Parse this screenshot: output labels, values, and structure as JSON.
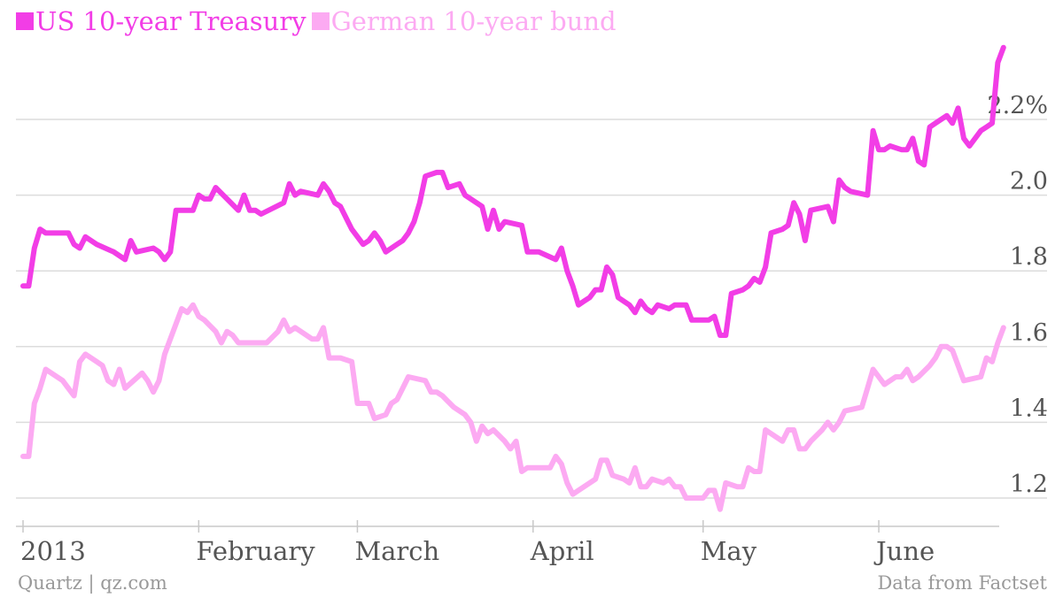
{
  "footer": {
    "credit": "Quartz | qz.com",
    "source": "Data from Factset"
  },
  "chart_data": {
    "type": "line",
    "title": "",
    "xlabel": "",
    "ylabel": "",
    "ylim": [
      1.15,
      2.4
    ],
    "y_ticks": [
      {
        "value": 1.2,
        "label": "1.2"
      },
      {
        "value": 1.4,
        "label": "1.4"
      },
      {
        "value": 1.6,
        "label": "1.6"
      },
      {
        "value": 1.8,
        "label": "1.8"
      },
      {
        "value": 2.0,
        "label": "2.0"
      },
      {
        "value": 2.2,
        "label": "2.2%"
      }
    ],
    "x_range": [
      "2013-01-01",
      "2013-06-21"
    ],
    "x_ticks": [
      {
        "date": "2013-01-01",
        "label": "2013"
      },
      {
        "date": "2013-02-01",
        "label": "February"
      },
      {
        "date": "2013-03-01",
        "label": "March"
      },
      {
        "date": "2013-04-01",
        "label": "April"
      },
      {
        "date": "2013-05-01",
        "label": "May"
      },
      {
        "date": "2013-06-01",
        "label": "June"
      }
    ],
    "grid": true,
    "legend_position": "top-left",
    "series": [
      {
        "name": "US 10-year Treasury",
        "color": "#f23de6",
        "points": [
          [
            "2013-01-01",
            1.76
          ],
          [
            "2013-01-02",
            1.76
          ],
          [
            "2013-01-03",
            1.86
          ],
          [
            "2013-01-04",
            1.91
          ],
          [
            "2013-01-05",
            1.9
          ],
          [
            "2013-01-07",
            1.9
          ],
          [
            "2013-01-09",
            1.9
          ],
          [
            "2013-01-10",
            1.87
          ],
          [
            "2013-01-11",
            1.86
          ],
          [
            "2013-01-12",
            1.89
          ],
          [
            "2013-01-14",
            1.87
          ],
          [
            "2013-01-17",
            1.85
          ],
          [
            "2013-01-19",
            1.83
          ],
          [
            "2013-01-20",
            1.88
          ],
          [
            "2013-01-21",
            1.85
          ],
          [
            "2013-01-24",
            1.86
          ],
          [
            "2013-01-25",
            1.85
          ],
          [
            "2013-01-26",
            1.83
          ],
          [
            "2013-01-27",
            1.85
          ],
          [
            "2013-01-28",
            1.96
          ],
          [
            "2013-01-31",
            1.96
          ],
          [
            "2013-02-01",
            2.0
          ],
          [
            "2013-02-02",
            1.99
          ],
          [
            "2013-02-03",
            1.99
          ],
          [
            "2013-02-04",
            2.02
          ],
          [
            "2013-02-06",
            1.99
          ],
          [
            "2013-02-08",
            1.96
          ],
          [
            "2013-02-09",
            2.0
          ],
          [
            "2013-02-10",
            1.96
          ],
          [
            "2013-02-11",
            1.96
          ],
          [
            "2013-02-12",
            1.95
          ],
          [
            "2013-02-16",
            1.98
          ],
          [
            "2013-02-17",
            2.03
          ],
          [
            "2013-02-18",
            2.0
          ],
          [
            "2013-02-19",
            2.01
          ],
          [
            "2013-02-22",
            2.0
          ],
          [
            "2013-02-23",
            2.03
          ],
          [
            "2013-02-24",
            2.01
          ],
          [
            "2013-02-25",
            1.98
          ],
          [
            "2013-02-26",
            1.97
          ],
          [
            "2013-02-28",
            1.91
          ],
          [
            "2013-03-02",
            1.87
          ],
          [
            "2013-03-03",
            1.88
          ],
          [
            "2013-03-04",
            1.9
          ],
          [
            "2013-03-05",
            1.88
          ],
          [
            "2013-03-06",
            1.85
          ],
          [
            "2013-03-08",
            1.87
          ],
          [
            "2013-03-09",
            1.88
          ],
          [
            "2013-03-10",
            1.9
          ],
          [
            "2013-03-11",
            1.93
          ],
          [
            "2013-03-12",
            1.98
          ],
          [
            "2013-03-13",
            2.05
          ],
          [
            "2013-03-15",
            2.06
          ],
          [
            "2013-03-16",
            2.06
          ],
          [
            "2013-03-17",
            2.02
          ],
          [
            "2013-03-19",
            2.03
          ],
          [
            "2013-03-20",
            2.0
          ],
          [
            "2013-03-23",
            1.97
          ],
          [
            "2013-03-24",
            1.91
          ],
          [
            "2013-03-25",
            1.96
          ],
          [
            "2013-03-26",
            1.91
          ],
          [
            "2013-03-27",
            1.93
          ],
          [
            "2013-03-30",
            1.92
          ],
          [
            "2013-03-31",
            1.85
          ],
          [
            "2013-04-02",
            1.85
          ],
          [
            "2013-04-05",
            1.83
          ],
          [
            "2013-04-06",
            1.86
          ],
          [
            "2013-04-07",
            1.8
          ],
          [
            "2013-04-08",
            1.76
          ],
          [
            "2013-04-09",
            1.71
          ],
          [
            "2013-04-10",
            1.72
          ],
          [
            "2013-04-11",
            1.73
          ],
          [
            "2013-04-12",
            1.75
          ],
          [
            "2013-04-13",
            1.75
          ],
          [
            "2013-04-14",
            1.81
          ],
          [
            "2013-04-15",
            1.79
          ],
          [
            "2013-04-16",
            1.73
          ],
          [
            "2013-04-18",
            1.71
          ],
          [
            "2013-04-19",
            1.69
          ],
          [
            "2013-04-20",
            1.72
          ],
          [
            "2013-04-21",
            1.7
          ],
          [
            "2013-04-22",
            1.69
          ],
          [
            "2013-04-23",
            1.71
          ],
          [
            "2013-04-25",
            1.7
          ],
          [
            "2013-04-26",
            1.71
          ],
          [
            "2013-04-28",
            1.71
          ],
          [
            "2013-04-29",
            1.67
          ],
          [
            "2013-05-01",
            1.67
          ],
          [
            "2013-05-02",
            1.67
          ],
          [
            "2013-05-03",
            1.68
          ],
          [
            "2013-05-04",
            1.63
          ],
          [
            "2013-05-05",
            1.63
          ],
          [
            "2013-05-06",
            1.74
          ],
          [
            "2013-05-08",
            1.75
          ],
          [
            "2013-05-09",
            1.76
          ],
          [
            "2013-05-10",
            1.78
          ],
          [
            "2013-05-11",
            1.77
          ],
          [
            "2013-05-12",
            1.81
          ],
          [
            "2013-05-13",
            1.9
          ],
          [
            "2013-05-15",
            1.91
          ],
          [
            "2013-05-16",
            1.92
          ],
          [
            "2013-05-17",
            1.98
          ],
          [
            "2013-05-18",
            1.95
          ],
          [
            "2013-05-19",
            1.88
          ],
          [
            "2013-05-20",
            1.96
          ],
          [
            "2013-05-23",
            1.97
          ],
          [
            "2013-05-24",
            1.93
          ],
          [
            "2013-05-25",
            2.04
          ],
          [
            "2013-05-26",
            2.02
          ],
          [
            "2013-05-27",
            2.01
          ],
          [
            "2013-05-30",
            2.0
          ],
          [
            "2013-05-31",
            2.17
          ],
          [
            "2013-06-01",
            2.12
          ],
          [
            "2013-06-02",
            2.12
          ],
          [
            "2013-06-03",
            2.13
          ],
          [
            "2013-06-05",
            2.12
          ],
          [
            "2013-06-06",
            2.12
          ],
          [
            "2013-06-07",
            2.15
          ],
          [
            "2013-06-08",
            2.09
          ],
          [
            "2013-06-09",
            2.08
          ],
          [
            "2013-06-10",
            2.18
          ],
          [
            "2013-06-11",
            2.19
          ],
          [
            "2013-06-13",
            2.21
          ],
          [
            "2013-06-14",
            2.19
          ],
          [
            "2013-06-15",
            2.23
          ],
          [
            "2013-06-16",
            2.15
          ],
          [
            "2013-06-17",
            2.13
          ],
          [
            "2013-06-19",
            2.17
          ],
          [
            "2013-06-20",
            2.18
          ],
          [
            "2013-06-21",
            2.19
          ],
          [
            "2013-06-22",
            2.35
          ],
          [
            "2013-06-23",
            2.39
          ]
        ]
      },
      {
        "name": "German 10-year bund",
        "color": "#fcaaf2",
        "points": [
          [
            "2013-01-01",
            1.31
          ],
          [
            "2013-01-02",
            1.31
          ],
          [
            "2013-01-03",
            1.45
          ],
          [
            "2013-01-04",
            1.49
          ],
          [
            "2013-01-05",
            1.54
          ],
          [
            "2013-01-07",
            1.52
          ],
          [
            "2013-01-08",
            1.51
          ],
          [
            "2013-01-09",
            1.49
          ],
          [
            "2013-01-10",
            1.47
          ],
          [
            "2013-01-11",
            1.56
          ],
          [
            "2013-01-12",
            1.58
          ],
          [
            "2013-01-14",
            1.56
          ],
          [
            "2013-01-15",
            1.55
          ],
          [
            "2013-01-16",
            1.51
          ],
          [
            "2013-01-17",
            1.5
          ],
          [
            "2013-01-18",
            1.54
          ],
          [
            "2013-01-19",
            1.49
          ],
          [
            "2013-01-22",
            1.53
          ],
          [
            "2013-01-23",
            1.51
          ],
          [
            "2013-01-24",
            1.48
          ],
          [
            "2013-01-25",
            1.51
          ],
          [
            "2013-01-26",
            1.58
          ],
          [
            "2013-01-27",
            1.62
          ],
          [
            "2013-01-28",
            1.66
          ],
          [
            "2013-01-29",
            1.7
          ],
          [
            "2013-01-30",
            1.69
          ],
          [
            "2013-01-31",
            1.71
          ],
          [
            "2013-02-01",
            1.68
          ],
          [
            "2013-02-02",
            1.67
          ],
          [
            "2013-02-04",
            1.64
          ],
          [
            "2013-02-05",
            1.61
          ],
          [
            "2013-02-06",
            1.64
          ],
          [
            "2013-02-07",
            1.63
          ],
          [
            "2013-02-08",
            1.61
          ],
          [
            "2013-02-13",
            1.61
          ],
          [
            "2013-02-15",
            1.64
          ],
          [
            "2013-02-16",
            1.67
          ],
          [
            "2013-02-17",
            1.64
          ],
          [
            "2013-02-18",
            1.65
          ],
          [
            "2013-02-21",
            1.62
          ],
          [
            "2013-02-22",
            1.62
          ],
          [
            "2013-02-23",
            1.65
          ],
          [
            "2013-02-24",
            1.57
          ],
          [
            "2013-02-26",
            1.57
          ],
          [
            "2013-02-28",
            1.56
          ],
          [
            "2013-03-01",
            1.45
          ],
          [
            "2013-03-03",
            1.45
          ],
          [
            "2013-03-04",
            1.41
          ],
          [
            "2013-03-06",
            1.42
          ],
          [
            "2013-03-07",
            1.45
          ],
          [
            "2013-03-08",
            1.46
          ],
          [
            "2013-03-09",
            1.49
          ],
          [
            "2013-03-10",
            1.52
          ],
          [
            "2013-03-13",
            1.51
          ],
          [
            "2013-03-14",
            1.48
          ],
          [
            "2013-03-15",
            1.48
          ],
          [
            "2013-03-16",
            1.47
          ],
          [
            "2013-03-18",
            1.44
          ],
          [
            "2013-03-20",
            1.42
          ],
          [
            "2013-03-21",
            1.4
          ],
          [
            "2013-03-22",
            1.35
          ],
          [
            "2013-03-23",
            1.39
          ],
          [
            "2013-03-24",
            1.37
          ],
          [
            "2013-03-25",
            1.38
          ],
          [
            "2013-03-27",
            1.35
          ],
          [
            "2013-03-28",
            1.33
          ],
          [
            "2013-03-29",
            1.35
          ],
          [
            "2013-03-30",
            1.27
          ],
          [
            "2013-03-31",
            1.28
          ],
          [
            "2013-04-04",
            1.28
          ],
          [
            "2013-04-05",
            1.31
          ],
          [
            "2013-04-06",
            1.29
          ],
          [
            "2013-04-07",
            1.24
          ],
          [
            "2013-04-08",
            1.21
          ],
          [
            "2013-04-09",
            1.22
          ],
          [
            "2013-04-12",
            1.25
          ],
          [
            "2013-04-13",
            1.3
          ],
          [
            "2013-04-14",
            1.3
          ],
          [
            "2013-04-15",
            1.26
          ],
          [
            "2013-04-17",
            1.25
          ],
          [
            "2013-04-18",
            1.24
          ],
          [
            "2013-04-19",
            1.28
          ],
          [
            "2013-04-20",
            1.23
          ],
          [
            "2013-04-21",
            1.23
          ],
          [
            "2013-04-22",
            1.25
          ],
          [
            "2013-04-24",
            1.24
          ],
          [
            "2013-04-25",
            1.25
          ],
          [
            "2013-04-26",
            1.23
          ],
          [
            "2013-04-27",
            1.23
          ],
          [
            "2013-04-28",
            1.2
          ],
          [
            "2013-05-01",
            1.2
          ],
          [
            "2013-05-02",
            1.22
          ],
          [
            "2013-05-03",
            1.22
          ],
          [
            "2013-05-04",
            1.17
          ],
          [
            "2013-05-05",
            1.24
          ],
          [
            "2013-05-07",
            1.23
          ],
          [
            "2013-05-08",
            1.23
          ],
          [
            "2013-05-09",
            1.28
          ],
          [
            "2013-05-10",
            1.27
          ],
          [
            "2013-05-11",
            1.27
          ],
          [
            "2013-05-12",
            1.38
          ],
          [
            "2013-05-13",
            1.37
          ],
          [
            "2013-05-14",
            1.36
          ],
          [
            "2013-05-15",
            1.35
          ],
          [
            "2013-05-16",
            1.38
          ],
          [
            "2013-05-17",
            1.38
          ],
          [
            "2013-05-18",
            1.33
          ],
          [
            "2013-05-19",
            1.33
          ],
          [
            "2013-05-20",
            1.35
          ],
          [
            "2013-05-22",
            1.38
          ],
          [
            "2013-05-23",
            1.4
          ],
          [
            "2013-05-24",
            1.38
          ],
          [
            "2013-05-25",
            1.4
          ],
          [
            "2013-05-26",
            1.43
          ],
          [
            "2013-05-29",
            1.44
          ],
          [
            "2013-05-30",
            1.49
          ],
          [
            "2013-05-31",
            1.54
          ],
          [
            "2013-06-01",
            1.52
          ],
          [
            "2013-06-02",
            1.5
          ],
          [
            "2013-06-04",
            1.52
          ],
          [
            "2013-06-05",
            1.52
          ],
          [
            "2013-06-06",
            1.54
          ],
          [
            "2013-06-07",
            1.51
          ],
          [
            "2013-06-08",
            1.52
          ],
          [
            "2013-06-10",
            1.55
          ],
          [
            "2013-06-11",
            1.57
          ],
          [
            "2013-06-12",
            1.6
          ],
          [
            "2013-06-13",
            1.6
          ],
          [
            "2013-06-14",
            1.59
          ],
          [
            "2013-06-15",
            1.55
          ],
          [
            "2013-06-16",
            1.51
          ],
          [
            "2013-06-19",
            1.52
          ],
          [
            "2013-06-20",
            1.57
          ],
          [
            "2013-06-21",
            1.56
          ],
          [
            "2013-06-22",
            1.61
          ],
          [
            "2013-06-23",
            1.65
          ]
        ]
      }
    ]
  }
}
